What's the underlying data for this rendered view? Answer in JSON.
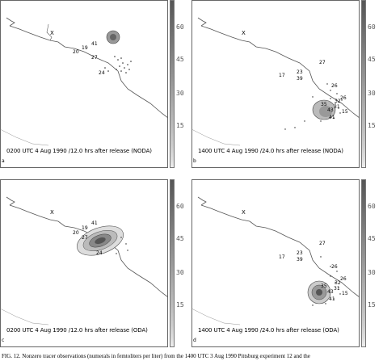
{
  "colorbar_ticks": [
    "60",
    "45",
    "30",
    "15"
  ],
  "site_marker": "X",
  "panels": {
    "a": {
      "letter": "a",
      "label": "0200 UTC 4 Aug 1990 /12.0 hrs after release (NODA)",
      "obs": [
        "41",
        "19",
        "20",
        "27",
        "24"
      ]
    },
    "b": {
      "letter": "b",
      "label": "1400 UTC 4 Aug 1990 /24.0 hrs after release (NODA)",
      "obs": [
        "27",
        "17",
        "23",
        "39",
        "26",
        "32",
        "35",
        "26",
        "31",
        "43",
        "15",
        "41"
      ]
    },
    "c": {
      "letter": "c",
      "label": "0200 UTC 4 Aug 1990 /12.0 hrs after release (ODA)",
      "obs": [
        "41",
        "19",
        "20",
        "27",
        "24"
      ]
    },
    "d": {
      "letter": "d",
      "label": "1400 UTC 4 Aug 1990 /24.0 hrs after release (ODA)",
      "obs": [
        "27",
        "17",
        "23",
        "39",
        "26",
        "32",
        "35",
        "26",
        "31",
        "43",
        "15",
        "41"
      ]
    }
  },
  "caption": "FIG. 12. Nonzero tracer observations (numerals in femtoliters per liter) from the 1400 UTC 3 Aug 1990 Pittsburg experiment 12 and the"
}
